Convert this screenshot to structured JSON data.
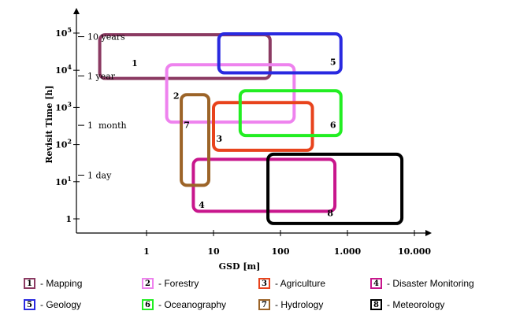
{
  "chart_data": {
    "type": "range-boxes",
    "xlabel": "GSD [m]",
    "ylabel": "Revisit Time [h]",
    "x_scale": "log",
    "y_scale": "log",
    "xlim": [
      0.15,
      12000
    ],
    "ylim": [
      0.6,
      180000
    ],
    "x_ticks": [
      {
        "value": 1,
        "label": "1"
      },
      {
        "value": 10,
        "label": "10"
      },
      {
        "value": 100,
        "label": "100"
      },
      {
        "value": 1000,
        "label": "1.000"
      },
      {
        "value": 10000,
        "label": "10.000"
      }
    ],
    "y_ticks": [
      {
        "value": 1,
        "base": "1",
        "exp": ""
      },
      {
        "value": 10,
        "base": "10",
        "exp": "1"
      },
      {
        "value": 100,
        "base": "10",
        "exp": "2"
      },
      {
        "value": 1000,
        "base": "10",
        "exp": "3"
      },
      {
        "value": 10000,
        "base": "10",
        "exp": "4"
      },
      {
        "value": 100000,
        "base": "10",
        "exp": "5"
      }
    ],
    "y_annotations": [
      {
        "value": 15,
        "label": "1 day"
      },
      {
        "value": 330,
        "label": "1  month"
      },
      {
        "value": 7000,
        "label": "1 year"
      },
      {
        "value": 80000,
        "label": "10 years"
      }
    ],
    "regions": [
      {
        "id": "1",
        "name": "Mapping",
        "color": "#8b3a62",
        "x": [
          0.2,
          70
        ],
        "y": [
          6000,
          90000
        ],
        "label_pos": [
          0.6,
          13000
        ]
      },
      {
        "id": "2",
        "name": "Forestry",
        "color": "#ee82ee",
        "x": [
          2,
          160
        ],
        "y": [
          400,
          14000
        ],
        "label_pos": [
          2.5,
          1700
        ]
      },
      {
        "id": "3",
        "name": "Agriculture",
        "color": "#e8431c",
        "x": [
          10,
          300
        ],
        "y": [
          70,
          1350
        ],
        "label_pos": [
          11,
          120
        ]
      },
      {
        "id": "4",
        "name": "Disaster Monitoring",
        "color": "#c8168c",
        "x": [
          5,
          650
        ],
        "y": [
          1.6,
          40
        ],
        "label_pos": [
          6,
          2
        ]
      },
      {
        "id": "5",
        "name": "Geology",
        "color": "#2929e0",
        "x": [
          12,
          800
        ],
        "y": [
          8500,
          95000
        ],
        "label_pos": [
          550,
          14000
        ]
      },
      {
        "id": "6",
        "name": "Oceanography",
        "color": "#22ee22",
        "x": [
          25,
          800
        ],
        "y": [
          175,
          2800
        ],
        "label_pos": [
          550,
          280
        ]
      },
      {
        "id": "7",
        "name": "Hydrology",
        "color": "#9c6428",
        "x": [
          3.3,
          8.5
        ],
        "y": [
          8,
          2200
        ],
        "label_pos": [
          3.6,
          280
        ]
      },
      {
        "id": "8",
        "name": "Meteorology",
        "color": "#000000",
        "x": [
          65,
          6500
        ],
        "y": [
          0.75,
          55
        ],
        "label_pos": [
          500,
          1.2
        ]
      }
    ]
  },
  "legend": [
    {
      "id": "1",
      "text": "- Mapping",
      "color": "#8b3a62"
    },
    {
      "id": "2",
      "text": "- Forestry",
      "color": "#ee82ee"
    },
    {
      "id": "3",
      "text": "- Agriculture",
      "color": "#e8431c"
    },
    {
      "id": "4",
      "text": "- Disaster Monitoring",
      "color": "#c8168c"
    },
    {
      "id": "5",
      "text": "- Geology",
      "color": "#2929e0"
    },
    {
      "id": "6",
      "text": "- Oceanography",
      "color": "#22ee22"
    },
    {
      "id": "7",
      "text": "- Hydrology",
      "color": "#9c6428"
    },
    {
      "id": "8",
      "text": "- Meteorology",
      "color": "#000000"
    }
  ]
}
